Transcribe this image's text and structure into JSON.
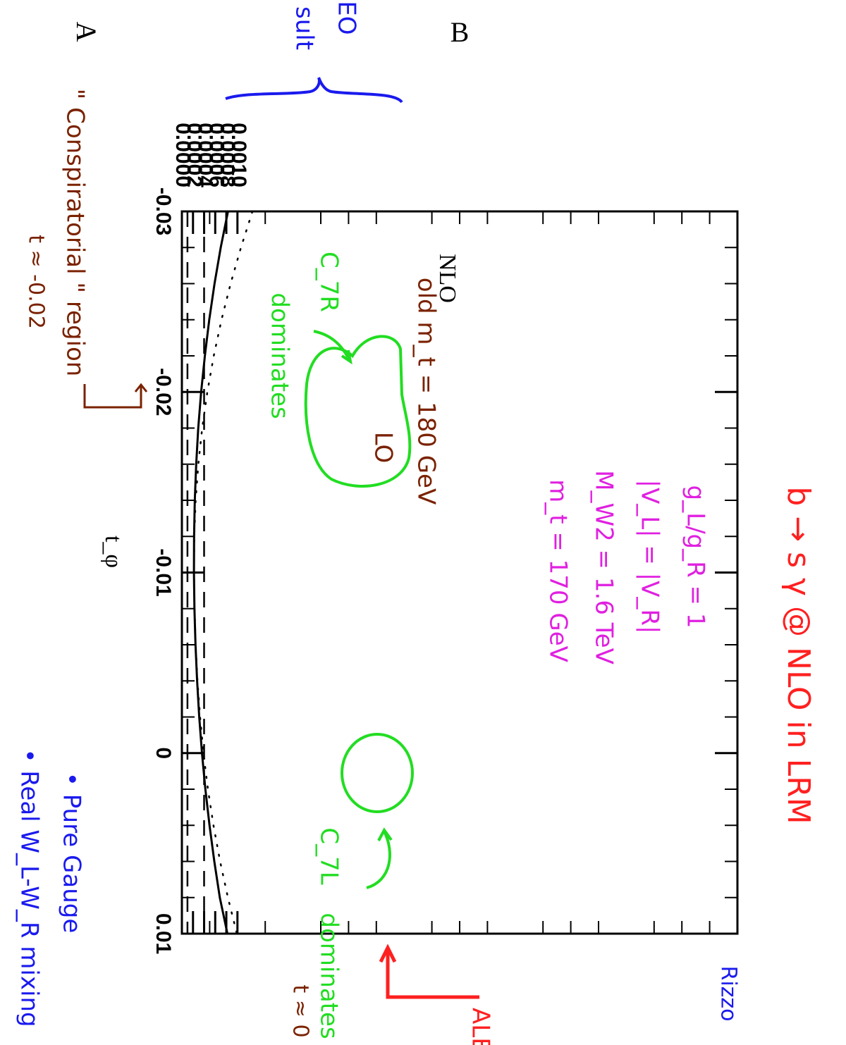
{
  "chart_data": {
    "type": "line",
    "xlabel": "t_φ",
    "ylabel": "",
    "xlim": [
      -0.03,
      0.01
    ],
    "ylim": [
      0.0,
      0.01
    ],
    "x_ticks": [
      "-0.03",
      "-0.02",
      "-0.01",
      "0",
      "0.01"
    ],
    "y_ticks": [
      "0.0000",
      "0.0002",
      "0.0004",
      "0.0006",
      "0.0008",
      "0.0010"
    ],
    "series": [
      {
        "name": "NLO",
        "style": "solid",
        "x": [
          -0.03,
          -0.028,
          -0.026,
          -0.024,
          -0.022,
          -0.02,
          -0.018,
          -0.016,
          -0.014,
          -0.012,
          -0.01,
          -0.008,
          -0.006,
          -0.004,
          -0.002,
          0.0,
          0.002,
          0.004,
          0.006,
          0.008,
          0.01
        ],
        "y": [
          0.00083,
          0.000699,
          0.000588,
          0.000493,
          0.000414,
          0.000347,
          0.000295,
          0.000257,
          0.000232,
          0.000219,
          0.000217,
          0.000226,
          0.000245,
          0.000274,
          0.000312,
          0.000362,
          0.000423,
          0.000497,
          0.000584,
          0.000683,
          0.00082
        ]
      },
      {
        "name": "LO",
        "style": "dotted",
        "x": [
          -0.03,
          -0.028,
          -0.026,
          -0.024,
          -0.022,
          -0.02,
          -0.018,
          -0.016,
          -0.014,
          -0.012,
          -0.01,
          -0.008,
          -0.006,
          -0.004,
          -0.002,
          0.0,
          0.002,
          0.004,
          0.006,
          0.008,
          0.01
        ],
        "y": [
          0.00127,
          0.001063,
          0.000877,
          0.000713,
          0.000573,
          0.000458,
          0.000366,
          0.000296,
          0.000248,
          0.000222,
          0.000218,
          0.000227,
          0.000248,
          0.000281,
          0.000327,
          0.000388,
          0.000468,
          0.000568,
          0.000688,
          0.000829,
          0.00099
        ]
      },
      {
        "name": "",
        "style": "dashed",
        "x": [
          -0.03,
          0.01
        ],
        "y": [
          0.0004,
          0.0004
        ]
      },
      {
        "name": "",
        "style": "dashed",
        "x": [
          -0.03,
          0.01
        ],
        "y": [
          0.0001,
          0.0001
        ]
      }
    ],
    "annotations": {
      "letter_a": "A",
      "letter_b": "B",
      "nlo_label": "NLO",
      "lo_label": "LO",
      "old_mt_label": "old m_t = 180 GeV",
      "title_handwritten": "b → s γ @ NLO in LRM",
      "params": [
        "g_L/g_R = 1",
        "|V_L| = |V_R|",
        "M_W2 = 1.6 TeV",
        "m_t = 170 GeV"
      ],
      "c7r_label": "C_7R",
      "c7r_dominates": "dominates",
      "c7l_label": "C_7L",
      "c7l_dominates": "dominates",
      "conspiratorial": "\" Conspiratorial \" region",
      "t_approx_left": "t ≈ -0.02",
      "t_approx_right": "t ≈ 0",
      "rizzo": "Rizzo",
      "aleph": "ALEPH",
      "result_partial": "sult",
      "leo_partial": ".EO",
      "bullet_1": "• Pure Gauge",
      "bullet_2": "• Real W_L-W_R mixing"
    },
    "colors": {
      "ink": "#000000",
      "green": "#22dd22",
      "magenta": "#e020e0",
      "red": "#ff2020",
      "blue": "#1a1aee",
      "brown": "#7a2200"
    },
    "grid": false,
    "legend": "none"
  }
}
